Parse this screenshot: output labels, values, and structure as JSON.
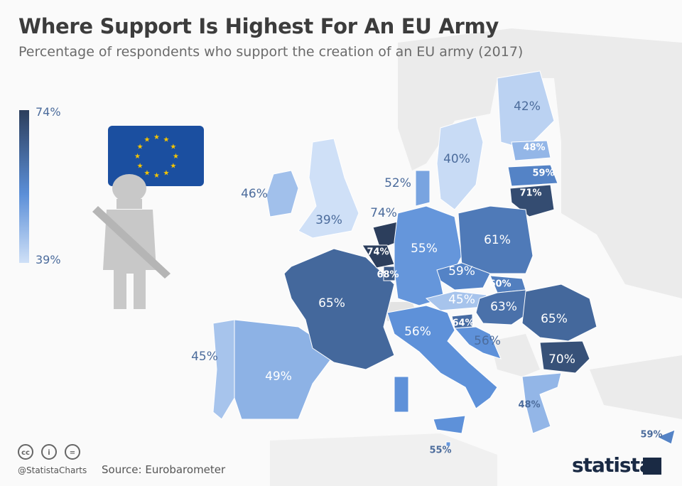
{
  "header": {
    "title": "Where Support Is Highest For An EU Army",
    "subtitle": "Percentage of respondents who support the creation of an EU army (2017)"
  },
  "legend": {
    "max_label": "74%",
    "min_label": "39%",
    "max": 74,
    "min": 39,
    "color_max": "#2c3e5c",
    "color_min": "#cfe0f7"
  },
  "map": {
    "non_member_color": "#e3e3e3",
    "regions": [
      {
        "value": 46,
        "label": "46%"
      },
      {
        "value": 39,
        "label": "39%"
      },
      {
        "value": 45,
        "label": "45%"
      },
      {
        "value": 49,
        "label": "49%"
      },
      {
        "value": 65,
        "label": "65%"
      },
      {
        "value": 74,
        "label": "74%"
      },
      {
        "value": 74,
        "label": "74%"
      },
      {
        "value": 68,
        "label": "68%"
      },
      {
        "value": 55,
        "label": "55%"
      },
      {
        "value": 52,
        "label": "52%"
      },
      {
        "value": 40,
        "label": "40%"
      },
      {
        "value": 42,
        "label": "42%"
      },
      {
        "value": 48,
        "label": "48%"
      },
      {
        "value": 59,
        "label": "59%"
      },
      {
        "value": 71,
        "label": "71%"
      },
      {
        "value": 61,
        "label": "61%"
      },
      {
        "value": 59,
        "label": "59%"
      },
      {
        "value": 60,
        "label": "60%"
      },
      {
        "value": 45,
        "label": "45%"
      },
      {
        "value": 63,
        "label": "63%"
      },
      {
        "value": 65,
        "label": "65%"
      },
      {
        "value": 70,
        "label": "70%"
      },
      {
        "value": 64,
        "label": "64%"
      },
      {
        "value": 56,
        "label": "56%"
      },
      {
        "value": 56,
        "label": "56%"
      },
      {
        "value": 55,
        "label": "55%"
      },
      {
        "value": 48,
        "label": "48%"
      },
      {
        "value": 59,
        "label": "59%"
      }
    ]
  },
  "icons": [
    "eu-flag-icon",
    "soldier-icon",
    "cc-icon",
    "by-icon",
    "nd-icon"
  ],
  "footer": {
    "handle": "@StatistaCharts",
    "source": "Source: Eurobarometer",
    "logo": "statista",
    "cc": "cc",
    "by": "i",
    "nd": "="
  }
}
